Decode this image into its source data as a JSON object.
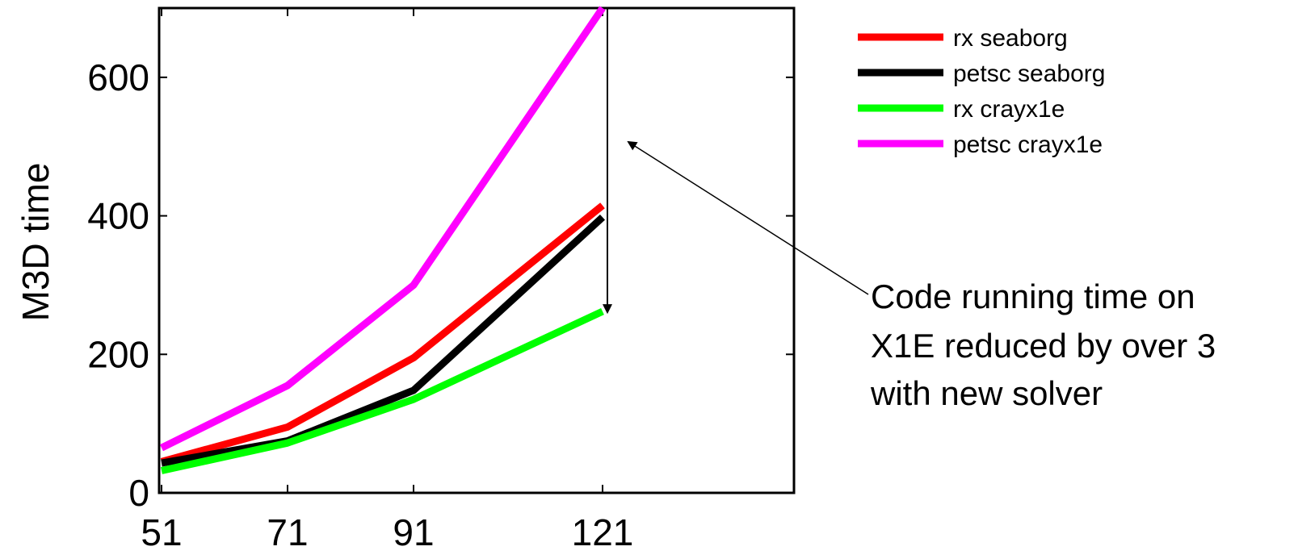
{
  "chart_data": {
    "type": "line",
    "title": "",
    "xlabel": "",
    "ylabel": "M3D time",
    "x": [
      51,
      71,
      91,
      121
    ],
    "x_ticks": [
      "51",
      "71",
      "91",
      "121"
    ],
    "xlim": [
      51,
      151
    ],
    "y_ticks": [
      "0",
      "200",
      "400",
      "600"
    ],
    "ylim": [
      0,
      700
    ],
    "grid": false,
    "legend_position": "top-right outside",
    "series": [
      {
        "name": "rx seaborg",
        "color": "#ff0000",
        "values": [
          45,
          95,
          195,
          415
        ]
      },
      {
        "name": "petsc seaborg",
        "color": "#000000",
        "values": [
          43,
          75,
          148,
          398
        ]
      },
      {
        "name": "rx crayx1e",
        "color": "#00ff00",
        "values": [
          32,
          72,
          135,
          262
        ]
      },
      {
        "name": "petsc crayx1e",
        "color": "#ff00ff",
        "values": [
          65,
          155,
          300,
          700
        ]
      }
    ],
    "annotation": {
      "lines": [
        "Code running time on",
        "X1E reduced by over 3",
        "with new solver"
      ],
      "drop_from": 700,
      "drop_to": 270
    }
  }
}
